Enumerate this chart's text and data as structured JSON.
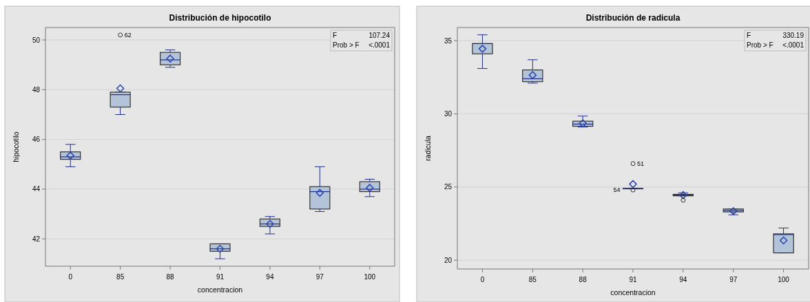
{
  "chart_data": [
    {
      "type": "box",
      "title": "Distribución de hipocotilo",
      "xlabel": "concentracion",
      "ylabel": "hipocotilo",
      "categories": [
        "0",
        "85",
        "88",
        "91",
        "94",
        "97",
        "100"
      ],
      "ylim": [
        40.9,
        50.5
      ],
      "yticks": [
        42,
        44,
        46,
        48,
        50
      ],
      "grid": "y",
      "boxes": [
        {
          "low": 44.9,
          "q1": 45.2,
          "median": 45.3,
          "q3": 45.5,
          "high": 45.8,
          "mean": 45.35
        },
        {
          "low": 47.0,
          "q1": 47.3,
          "median": 47.8,
          "q3": 47.9,
          "high": 47.9,
          "mean": 48.05,
          "outliers": [
            50.2
          ]
        },
        {
          "low": 48.9,
          "q1": 49.0,
          "median": 49.2,
          "q3": 49.5,
          "high": 49.6,
          "mean": 49.25
        },
        {
          "low": 41.2,
          "q1": 41.5,
          "median": 41.6,
          "q3": 41.8,
          "high": 41.8,
          "mean": 41.6
        },
        {
          "low": 42.2,
          "q1": 42.5,
          "median": 42.6,
          "q3": 42.8,
          "high": 42.9,
          "mean": 42.6
        },
        {
          "low": 43.1,
          "q1": 43.2,
          "median": 43.9,
          "q3": 44.1,
          "high": 44.9,
          "mean": 43.85
        },
        {
          "low": 43.7,
          "q1": 43.9,
          "median": 44.0,
          "q3": 44.3,
          "high": 44.4,
          "mean": 44.05
        }
      ],
      "annotations": [
        "F",
        "107.24",
        "Prob > F",
        "<.0001",
        "62"
      ]
    },
    {
      "type": "box",
      "title": "Distribución de radicula",
      "xlabel": "concentracion",
      "ylabel": "radicula",
      "categories": [
        "0",
        "85",
        "88",
        "91",
        "94",
        "97",
        "100"
      ],
      "ylim": [
        19.4,
        35.9
      ],
      "yticks": [
        20,
        25,
        30,
        35
      ],
      "grid": "y",
      "boxes": [
        {
          "low": 33.1,
          "q1": 34.1,
          "median": 34.8,
          "q3": 34.8,
          "high": 35.4,
          "mean": 34.45
        },
        {
          "low": 32.1,
          "q1": 32.2,
          "median": 32.4,
          "q3": 33.0,
          "high": 33.7,
          "mean": 32.65
        },
        {
          "low": 29.1,
          "q1": 29.15,
          "median": 29.3,
          "q3": 29.5,
          "high": 29.85,
          "mean": 29.35
        },
        {
          "low": 24.9,
          "q1": 24.9,
          "median": 24.9,
          "q3": 24.9,
          "high": 24.9,
          "mean": 25.2,
          "outliers": [
            26.6,
            24.8
          ]
        },
        {
          "low": 24.4,
          "q1": 24.4,
          "median": 24.45,
          "q3": 24.5,
          "high": 24.6,
          "mean": 24.45,
          "outliers": [
            24.1
          ]
        },
        {
          "low": 23.1,
          "q1": 23.3,
          "median": 23.4,
          "q3": 23.5,
          "high": 23.5,
          "mean": 23.35
        },
        {
          "low": 20.5,
          "q1": 20.5,
          "median": 21.75,
          "q3": 21.8,
          "high": 22.2,
          "mean": 21.35
        }
      ],
      "annotations": [
        "F",
        "330.19",
        "Prob > F",
        "<.0001",
        "51",
        "54"
      ]
    }
  ]
}
